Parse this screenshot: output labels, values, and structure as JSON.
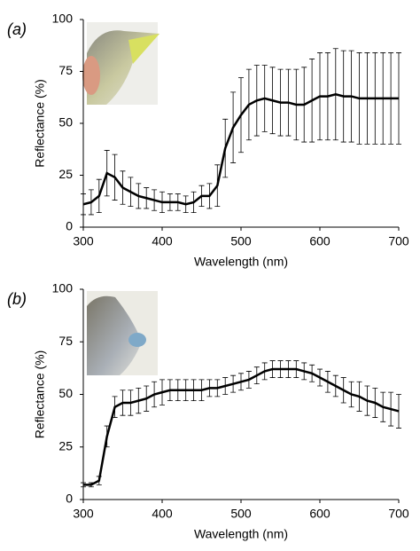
{
  "chart_data": [
    {
      "type": "line",
      "label": "(a)",
      "xlabel": "Wavelength (nm)",
      "ylabel": "Reflectance (%)",
      "x": [
        300,
        310,
        320,
        330,
        340,
        350,
        360,
        370,
        380,
        390,
        400,
        410,
        420,
        430,
        440,
        450,
        460,
        470,
        480,
        490,
        500,
        510,
        520,
        530,
        540,
        550,
        560,
        570,
        580,
        590,
        600,
        610,
        620,
        630,
        640,
        650,
        660,
        670,
        680,
        690,
        700
      ],
      "series": [
        {
          "color": "#000000",
          "values": [
            11,
            12,
            15,
            26,
            24,
            19,
            17,
            15,
            14,
            13,
            12,
            12,
            12,
            11,
            12,
            15,
            15,
            20,
            38,
            48,
            54,
            59,
            61,
            62,
            61,
            60,
            60,
            59,
            59,
            61,
            63,
            63,
            64,
            63,
            63,
            62,
            62,
            62,
            62,
            62,
            62
          ],
          "errors": [
            5,
            6,
            8,
            11,
            11,
            8,
            7,
            6,
            5,
            5,
            5,
            4,
            4,
            4,
            5,
            5,
            6,
            10,
            14,
            17,
            18,
            17,
            17,
            16,
            16,
            16,
            16,
            17,
            18,
            20,
            21,
            21,
            22,
            22,
            22,
            22,
            22,
            22,
            22,
            22,
            22
          ]
        }
      ],
      "xlim": [
        300,
        700
      ],
      "ylim": [
        0,
        100
      ],
      "xticks": [
        300,
        400,
        500,
        600,
        700
      ],
      "yticks": [
        0,
        25,
        50,
        75,
        100
      ]
    },
    {
      "type": "line",
      "label": "(b)",
      "xlabel": "Wavelength (nm)",
      "ylabel": "Reflectance (%)",
      "x": [
        300,
        310,
        320,
        330,
        340,
        350,
        360,
        370,
        380,
        390,
        400,
        410,
        420,
        430,
        440,
        450,
        460,
        470,
        480,
        490,
        500,
        510,
        520,
        530,
        540,
        550,
        560,
        570,
        580,
        590,
        600,
        610,
        620,
        630,
        640,
        650,
        660,
        670,
        680,
        690,
        700
      ],
      "series": [
        {
          "color": "#000000",
          "values": [
            7,
            7,
            9,
            30,
            44,
            46,
            46,
            47,
            48,
            50,
            51,
            52,
            52,
            52,
            52,
            52,
            53,
            53,
            54,
            55,
            56,
            57,
            59,
            61,
            62,
            62,
            62,
            62,
            61,
            60,
            58,
            56,
            54,
            52,
            50,
            49,
            47,
            46,
            44,
            43,
            42
          ],
          "errors": [
            1,
            1,
            2,
            5,
            5,
            6,
            6,
            6,
            6,
            6,
            6,
            5,
            5,
            5,
            5,
            5,
            4,
            4,
            4,
            4,
            4,
            4,
            4,
            4,
            4,
            4,
            4,
            4,
            4,
            4,
            4,
            5,
            5,
            6,
            6,
            7,
            7,
            7,
            7,
            8,
            8
          ]
        }
      ],
      "xlim": [
        300,
        700
      ],
      "ylim": [
        0,
        100
      ],
      "xticks": [
        300,
        400,
        500,
        600,
        700
      ],
      "yticks": [
        0,
        25,
        50,
        75,
        100
      ]
    }
  ]
}
